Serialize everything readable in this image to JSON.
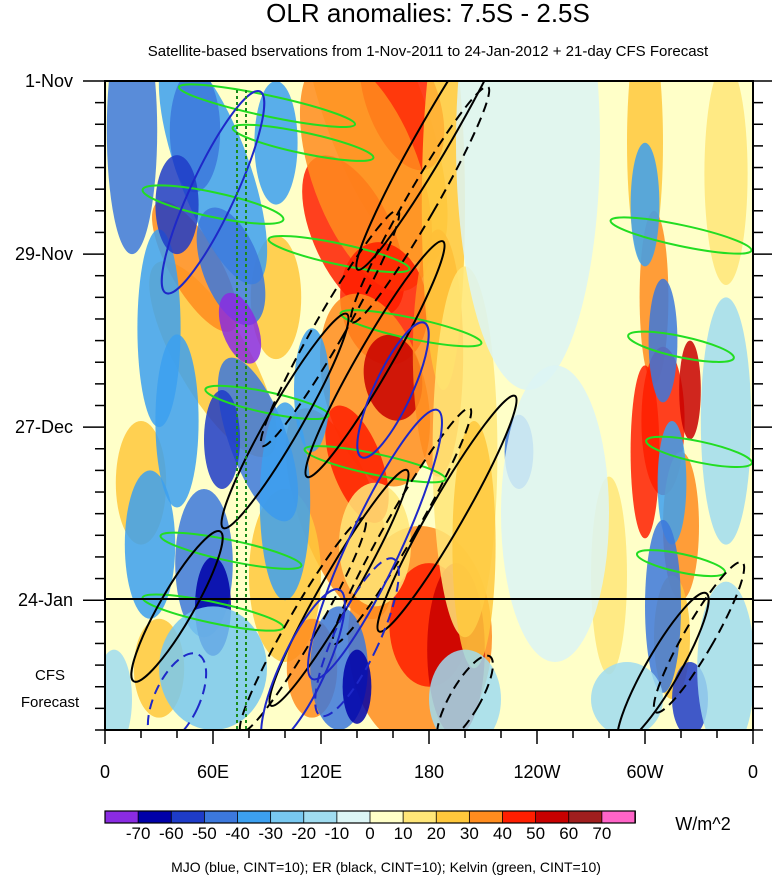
{
  "chart_data": {
    "type": "heatmap",
    "title": "OLR anomalies: 7.5S - 2.5S",
    "subtitle": "Satellite-based bservations from 1-Nov-2011 to 24-Jan-2012 + 21-day CFS Forecast",
    "x_axis": {
      "ticks": [
        "0",
        "60E",
        "120E",
        "180",
        "120W",
        "60W",
        "0"
      ],
      "range_degrees_east": [
        0,
        360
      ]
    },
    "y_axis": {
      "ticks": [
        "1-Nov",
        "29-Nov",
        "27-Dec",
        "24-Jan"
      ],
      "forecast_label_line1": "CFS",
      "forecast_label_line2": "Forecast",
      "range_days_from_start": [
        0,
        105
      ],
      "forecast_start_day": 84
    },
    "colorbar": {
      "labels": [
        "-70",
        "-60",
        "-50",
        "-40",
        "-30",
        "-20",
        "-10",
        "0",
        "10",
        "20",
        "30",
        "40",
        "50",
        "60",
        "70"
      ],
      "units": "W/m^2",
      "colors": [
        "#8a2be2",
        "#0000a8",
        "#1e3cc8",
        "#3c78dc",
        "#3ca0f0",
        "#78c8f0",
        "#a0dcf0",
        "#dcf5f5",
        "#ffffc8",
        "#ffe678",
        "#ffc83c",
        "#ff8c1e",
        "#ff1e00",
        "#c80000",
        "#a01e1e",
        "#ff64c8"
      ]
    },
    "caption": "MJO (blue, CINT=10); ER (black, CINT=10); Kelvin (green, CINT=10)"
  }
}
